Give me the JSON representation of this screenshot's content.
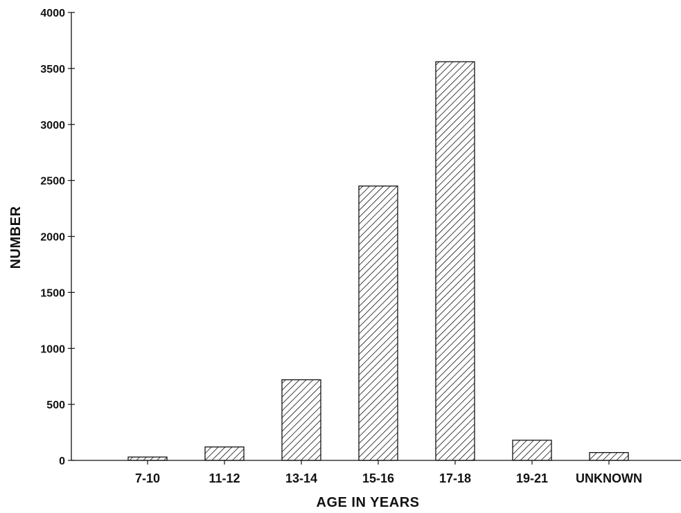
{
  "chart_data": {
    "type": "bar",
    "categories": [
      "7-10",
      "11-12",
      "13-14",
      "15-16",
      "17-18",
      "19-21",
      "UNKNOWN"
    ],
    "values": [
      30,
      120,
      720,
      2450,
      3560,
      180,
      70
    ],
    "xlabel": "AGE IN YEARS",
    "ylabel": "NUMBER",
    "ylim": [
      0,
      4000
    ],
    "yticks": [
      0,
      500,
      1000,
      1500,
      2000,
      2500,
      3000,
      3500,
      4000
    ],
    "grid": false,
    "bar_fill": "diagonal-hatch",
    "colors": {
      "stroke": "#111111",
      "background": "#ffffff"
    }
  }
}
